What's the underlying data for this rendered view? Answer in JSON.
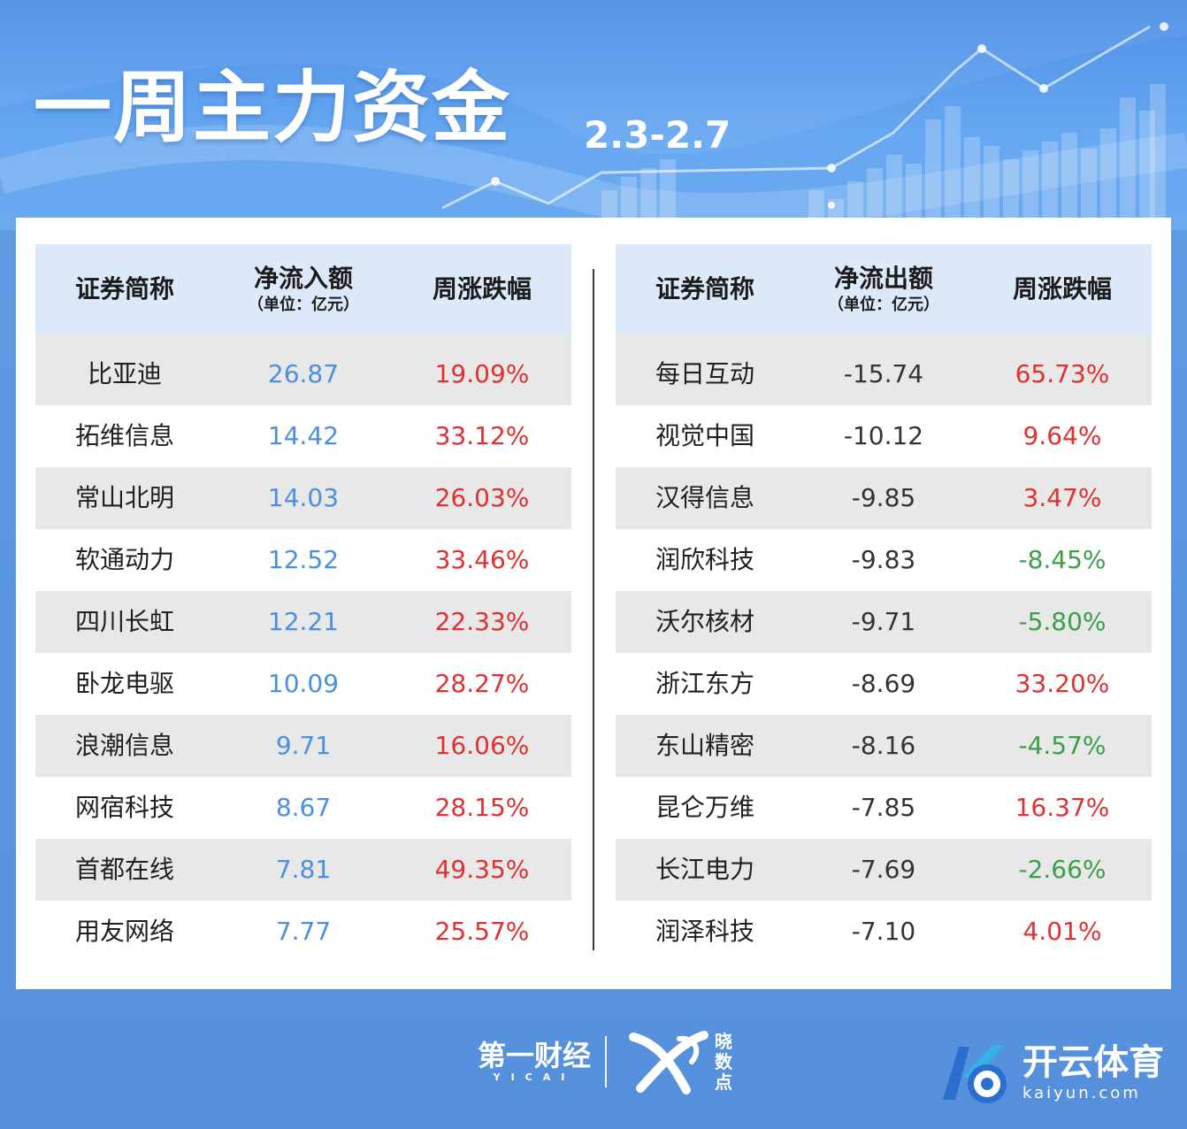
{
  "header": {
    "title": "一周主力资金",
    "date_range": "2.3-2.7"
  },
  "left_table": {
    "col_name": "证券简称",
    "col_flow": "净流入额",
    "col_flow_unit": "（单位：亿元）",
    "col_change": "周涨跌幅",
    "rows": [
      {
        "name": "比亚迪",
        "flow": "26.87",
        "change": "19.09%",
        "trend": "up"
      },
      {
        "name": "拓维信息",
        "flow": "14.42",
        "change": "33.12%",
        "trend": "up"
      },
      {
        "name": "常山北明",
        "flow": "14.03",
        "change": "26.03%",
        "trend": "up"
      },
      {
        "name": "软通动力",
        "flow": "12.52",
        "change": "33.46%",
        "trend": "up"
      },
      {
        "name": "四川长虹",
        "flow": "12.21",
        "change": "22.33%",
        "trend": "up"
      },
      {
        "name": "卧龙电驱",
        "flow": "10.09",
        "change": "28.27%",
        "trend": "up"
      },
      {
        "name": "浪潮信息",
        "flow": "9.71",
        "change": "16.06%",
        "trend": "up"
      },
      {
        "name": "网宿科技",
        "flow": "8.67",
        "change": "28.15%",
        "trend": "up"
      },
      {
        "name": "首都在线",
        "flow": "7.81",
        "change": "49.35%",
        "trend": "up"
      },
      {
        "name": "用友网络",
        "flow": "7.77",
        "change": "25.57%",
        "trend": "up"
      }
    ]
  },
  "right_table": {
    "col_name": "证券简称",
    "col_flow": "净流出额",
    "col_flow_unit": "（单位：亿元）",
    "col_change": "周涨跌幅",
    "rows": [
      {
        "name": "每日互动",
        "flow": "-15.74",
        "change": "65.73%",
        "trend": "up"
      },
      {
        "name": "视觉中国",
        "flow": "-10.12",
        "change": "9.64%",
        "trend": "up"
      },
      {
        "name": "汉得信息",
        "flow": "-9.85",
        "change": "3.47%",
        "trend": "up"
      },
      {
        "name": "润欣科技",
        "flow": "-9.83",
        "change": "-8.45%",
        "trend": "down"
      },
      {
        "name": "沃尔核材",
        "flow": "-9.71",
        "change": "-5.80%",
        "trend": "down"
      },
      {
        "name": "浙江东方",
        "flow": "-8.69",
        "change": "33.20%",
        "trend": "up"
      },
      {
        "name": "东山精密",
        "flow": "-8.16",
        "change": "-4.57%",
        "trend": "down"
      },
      {
        "name": "昆仑万维",
        "flow": "-7.85",
        "change": "16.37%",
        "trend": "up"
      },
      {
        "name": "长江电力",
        "flow": "-7.69",
        "change": "-2.66%",
        "trend": "down"
      },
      {
        "name": "润泽科技",
        "flow": "-7.10",
        "change": "4.01%",
        "trend": "up"
      }
    ]
  },
  "footer": {
    "brand_yicai": "第一财经",
    "brand_yicai_en": "YICAI",
    "brand_xiao": [
      "晓",
      "数",
      "点"
    ],
    "watermark_cn": "开云体育",
    "watermark_en": "kaiyun.com"
  },
  "colors": {
    "up": "#e03030",
    "down": "#3aa04a",
    "inflow": "#4a8fe0",
    "header_bg": "#dce9f8",
    "stripe": "#e8e8e8",
    "background": "#5a95e0"
  }
}
